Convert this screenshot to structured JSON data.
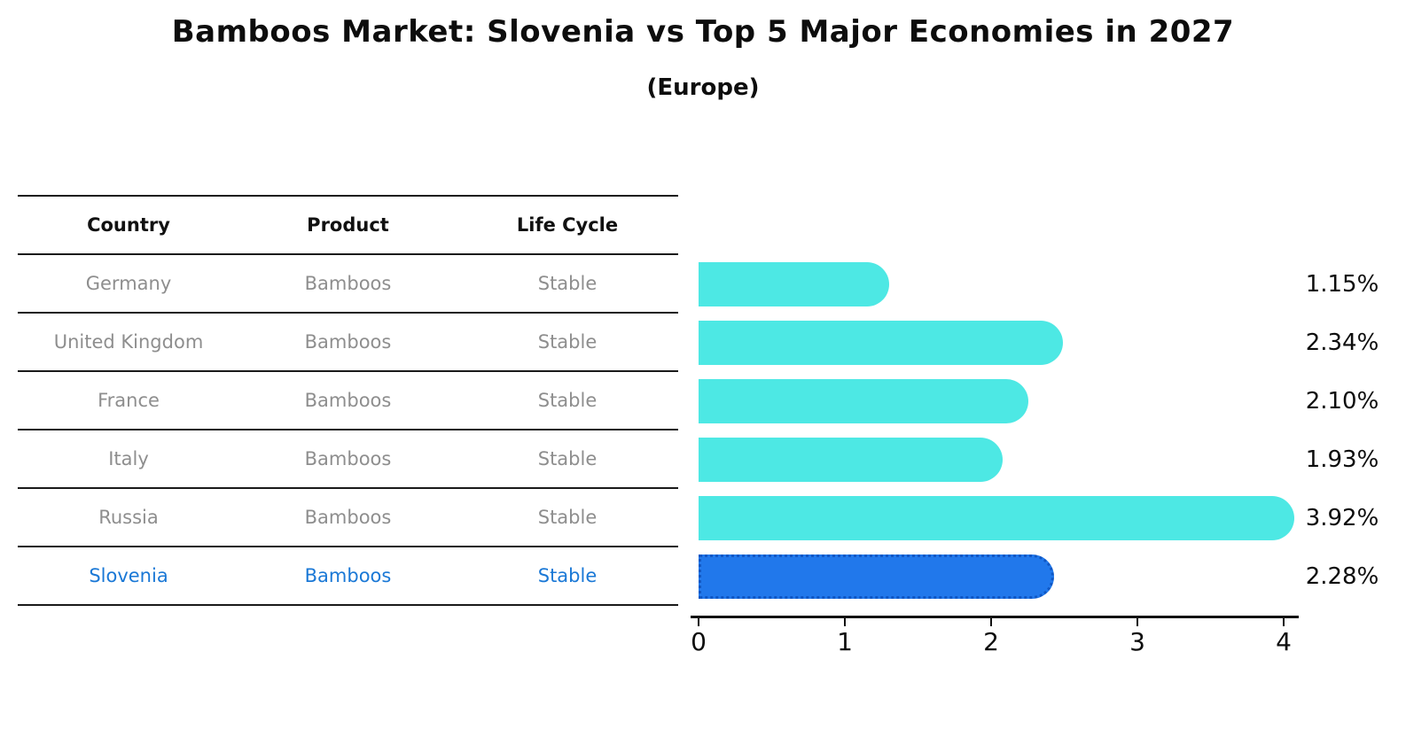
{
  "title": "Bamboos Market: Slovenia vs Top 5 Major Economies in 2027",
  "subtitle": "(Europe)",
  "table": {
    "headers": [
      "Country",
      "Product",
      "Life Cycle"
    ],
    "rows": [
      {
        "country": "Germany",
        "product": "Bamboos",
        "life_cycle": "Stable",
        "highlighted": false
      },
      {
        "country": "United Kingdom",
        "product": "Bamboos",
        "life_cycle": "Stable",
        "highlighted": false
      },
      {
        "country": "France",
        "product": "Bamboos",
        "life_cycle": "Stable",
        "highlighted": false
      },
      {
        "country": "Italy",
        "product": "Bamboos",
        "life_cycle": "Stable",
        "highlighted": false
      },
      {
        "country": "Russia",
        "product": "Bamboos",
        "life_cycle": "Stable",
        "highlighted": false
      },
      {
        "country": "Slovenia",
        "product": "Bamboos",
        "life_cycle": "Stable",
        "highlighted": true
      }
    ]
  },
  "chart_data": {
    "type": "bar",
    "orientation": "horizontal",
    "title": "Bamboos Market: Slovenia vs Top 5 Major Economies in 2027",
    "subtitle": "(Europe)",
    "categories": [
      "Germany",
      "United Kingdom",
      "France",
      "Italy",
      "Russia",
      "Slovenia"
    ],
    "values": [
      1.15,
      2.34,
      2.1,
      1.93,
      3.92,
      2.28
    ],
    "value_labels": [
      "1.15%",
      "2.34%",
      "2.10%",
      "1.93%",
      "3.92%",
      "2.28%"
    ],
    "xlabel": "",
    "ylabel": "",
    "xlim": [
      0,
      4
    ],
    "xticks": [
      "0",
      "1",
      "2",
      "3",
      "4"
    ],
    "grid": false,
    "legend": false,
    "highlight_index": 5,
    "colors": {
      "bar": "#4DE8E4",
      "highlight_bar": "#2178EB",
      "highlight_border": "#0F57C4",
      "row_text": "#8E8E8E",
      "highlight_text": "#1A78D6",
      "label_text": "#0D0D0D"
    }
  }
}
